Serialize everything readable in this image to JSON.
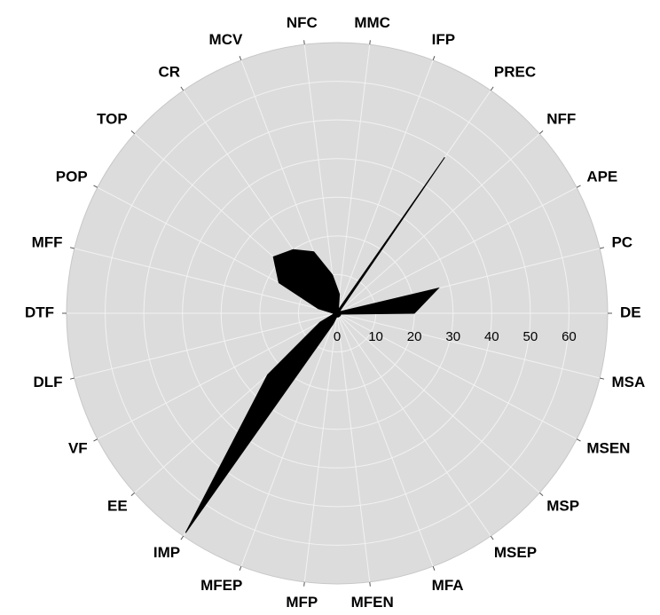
{
  "chart_data": {
    "type": "radar",
    "categories": [
      "DE",
      "MSA",
      "MSEN",
      "MSP",
      "MSEP",
      "MFA",
      "MFEN",
      "MFP",
      "MFEP",
      "IMP",
      "EE",
      "VF",
      "DLF",
      "DTF",
      "MFF",
      "POP",
      "TOP",
      "CR",
      "MCV",
      "NFC",
      "MMC",
      "IFP",
      "PREC",
      "NFF",
      "APE",
      "PC"
    ],
    "values": [
      20,
      1,
      1,
      1,
      1,
      1,
      1,
      1,
      3,
      69,
      24,
      5,
      1,
      1,
      5,
      17,
      22,
      20,
      17,
      10,
      5,
      1,
      49,
      1,
      1,
      27
    ],
    "color": "#000000",
    "ylim": [
      0,
      70
    ],
    "yticks": [
      0,
      10,
      20,
      30,
      40,
      50,
      60
    ],
    "grid": true
  }
}
